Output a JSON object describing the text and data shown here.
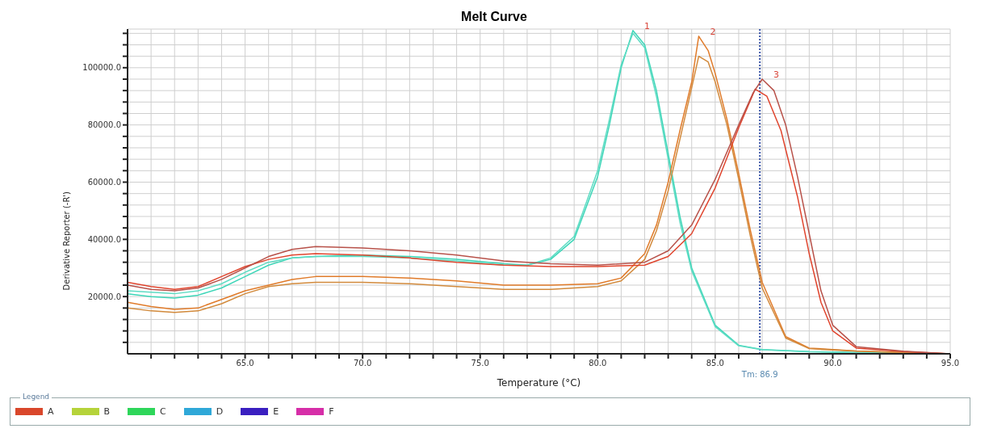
{
  "chart_data": {
    "type": "line",
    "title": "Melt Curve",
    "xlabel": "Temperature (°C)",
    "ylabel": "Derivative Reporter (-R')",
    "legend_title": "Legend",
    "legend": "bottom left",
    "grid": true,
    "xlim": [
      60,
      95
    ],
    "ylim": [
      0,
      113500
    ],
    "xticks": [
      {
        "value": 61,
        "label": null
      },
      {
        "value": 62,
        "label": null
      },
      {
        "value": 63,
        "label": null
      },
      {
        "value": 64,
        "label": null
      },
      {
        "value": 65,
        "label": "65.0"
      },
      {
        "value": 66,
        "label": null
      },
      {
        "value": 67,
        "label": null
      },
      {
        "value": 68,
        "label": null
      },
      {
        "value": 69,
        "label": null
      },
      {
        "value": 70,
        "label": "70.0"
      },
      {
        "value": 71,
        "label": null
      },
      {
        "value": 72,
        "label": null
      },
      {
        "value": 73,
        "label": null
      },
      {
        "value": 74,
        "label": null
      },
      {
        "value": 75,
        "label": "75.0"
      },
      {
        "value": 76,
        "label": null
      },
      {
        "value": 77,
        "label": null
      },
      {
        "value": 78,
        "label": null
      },
      {
        "value": 79,
        "label": null
      },
      {
        "value": 80,
        "label": "80.0"
      },
      {
        "value": 81,
        "label": null
      },
      {
        "value": 82,
        "label": null
      },
      {
        "value": 83,
        "label": null
      },
      {
        "value": 84,
        "label": null
      },
      {
        "value": 85,
        "label": "85.0"
      },
      {
        "value": 86,
        "label": null
      },
      {
        "value": 87,
        "label": null
      },
      {
        "value": 88,
        "label": null
      },
      {
        "value": 89,
        "label": null
      },
      {
        "value": 90,
        "label": "90.0"
      },
      {
        "value": 91,
        "label": null
      },
      {
        "value": 92,
        "label": null
      },
      {
        "value": 93,
        "label": null
      },
      {
        "value": 94,
        "label": null
      },
      {
        "value": 95,
        "label": "95.0"
      }
    ],
    "yticks": [
      {
        "value": 4000,
        "label": null
      },
      {
        "value": 8000,
        "label": null
      },
      {
        "value": 12000,
        "label": null
      },
      {
        "value": 16000,
        "label": null
      },
      {
        "value": 20000,
        "label": "20000.0"
      },
      {
        "value": 24000,
        "label": null
      },
      {
        "value": 28000,
        "label": null
      },
      {
        "value": 32000,
        "label": null
      },
      {
        "value": 36000,
        "label": null
      },
      {
        "value": 40000,
        "label": "40000.0"
      },
      {
        "value": 44000,
        "label": null
      },
      {
        "value": 48000,
        "label": null
      },
      {
        "value": 52000,
        "label": null
      },
      {
        "value": 56000,
        "label": null
      },
      {
        "value": 60000,
        "label": "60000.0"
      },
      {
        "value": 64000,
        "label": null
      },
      {
        "value": 68000,
        "label": null
      },
      {
        "value": 72000,
        "label": null
      },
      {
        "value": 76000,
        "label": null
      },
      {
        "value": 80000,
        "label": "80000.0"
      },
      {
        "value": 84000,
        "label": null
      },
      {
        "value": 88000,
        "label": null
      },
      {
        "value": 92000,
        "label": null
      },
      {
        "value": 96000,
        "label": null
      },
      {
        "value": 100000,
        "label": "100000.0"
      },
      {
        "value": 104000,
        "label": null
      },
      {
        "value": 108000,
        "label": null
      },
      {
        "value": 112000,
        "label": null
      }
    ],
    "ref_lines": [
      {
        "axis": "x",
        "value": 86.9,
        "label": "Tm: 86.9",
        "color": "#3a55a8",
        "line_style": "dotted"
      }
    ],
    "annotations": [
      {
        "text": "1",
        "x": 81.5,
        "y": 113000
      },
      {
        "text": "2",
        "x": 84.3,
        "y": 111000
      },
      {
        "text": "3",
        "x": 87,
        "y": 96000
      }
    ],
    "series": [
      {
        "color": "#3dd6b8",
        "x": [
          60,
          61,
          62,
          63,
          64,
          65,
          66,
          67,
          68,
          70,
          72,
          74,
          76,
          77,
          78,
          79,
          80,
          80.5,
          81,
          81.5,
          82,
          82.5,
          83,
          83.5,
          84,
          85,
          86,
          87,
          89,
          92,
          95
        ],
        "values": [
          21000,
          20000,
          19500,
          20500,
          23000,
          27000,
          31000,
          33500,
          34000,
          34500,
          34000,
          33000,
          31500,
          31000,
          33000,
          40000,
          62000,
          80000,
          100000,
          113000,
          108000,
          92000,
          70000,
          48000,
          30000,
          10000,
          3000,
          1500,
          800,
          300,
          0
        ]
      },
      {
        "color": "#5fdcc4",
        "x": [
          60,
          61,
          62,
          63,
          64,
          65,
          66,
          67,
          68,
          70,
          72,
          74,
          76,
          77,
          78,
          79,
          80,
          80.5,
          81,
          81.5,
          82,
          82.5,
          83,
          83.5,
          84,
          85,
          86,
          87,
          89,
          92,
          95
        ],
        "values": [
          22000,
          21500,
          21000,
          22000,
          24500,
          28500,
          32000,
          33500,
          34000,
          34000,
          33500,
          32500,
          31000,
          31000,
          33500,
          41000,
          64000,
          82000,
          101000,
          112000,
          107000,
          90000,
          68000,
          46000,
          29000,
          9500,
          2800,
          1400,
          700,
          300,
          0
        ]
      },
      {
        "color": "#e07b2a",
        "x": [
          60,
          61,
          62,
          63,
          64,
          65,
          66,
          67,
          68,
          70,
          72,
          74,
          76,
          78,
          80,
          81,
          82,
          82.5,
          83,
          83.5,
          84,
          84.3,
          84.7,
          85,
          85.5,
          86,
          86.5,
          87,
          88,
          89,
          91,
          95
        ],
        "values": [
          18000,
          16500,
          15500,
          16000,
          19000,
          22000,
          24000,
          26000,
          27000,
          27000,
          26500,
          25500,
          24000,
          24000,
          24500,
          26500,
          35000,
          45000,
          60000,
          78000,
          95000,
          111000,
          106000,
          98000,
          82000,
          63000,
          43000,
          25000,
          6000,
          2000,
          1000,
          0
        ]
      },
      {
        "color": "#d28a3c",
        "x": [
          60,
          61,
          62,
          63,
          64,
          65,
          66,
          67,
          68,
          70,
          72,
          74,
          76,
          78,
          80,
          81,
          82,
          82.5,
          83,
          83.5,
          84,
          84.3,
          84.7,
          85,
          85.5,
          86,
          86.5,
          87,
          88,
          89,
          91,
          95
        ],
        "values": [
          16000,
          15000,
          14500,
          15000,
          17500,
          21000,
          23500,
          24500,
          25000,
          25000,
          24500,
          23500,
          22500,
          22500,
          23500,
          25500,
          33000,
          43000,
          57000,
          75000,
          93000,
          104000,
          102000,
          95000,
          80000,
          61000,
          41000,
          23000,
          5500,
          1800,
          900,
          0
        ]
      },
      {
        "color": "#e0452e",
        "x": [
          60,
          61,
          62,
          63,
          64,
          65,
          66,
          67,
          68,
          70,
          72,
          74,
          76,
          78,
          80,
          82,
          83,
          84,
          85,
          86,
          86.7,
          87.2,
          87.8,
          88.5,
          89,
          89.5,
          90,
          91,
          93,
          95
        ],
        "values": [
          25000,
          23500,
          22500,
          23500,
          27000,
          30500,
          33000,
          34500,
          35000,
          34500,
          33500,
          32000,
          31000,
          30500,
          30500,
          31000,
          34000,
          42000,
          58000,
          79000,
          92500,
          90000,
          78000,
          55000,
          35000,
          18000,
          8000,
          2000,
          800,
          0
        ]
      },
      {
        "color": "#b8524a",
        "x": [
          60,
          61,
          62,
          63,
          64,
          65,
          66,
          67,
          68,
          70,
          72,
          74,
          76,
          78,
          80,
          82,
          83,
          84,
          85,
          86,
          86.6,
          87,
          87.5,
          88,
          88.5,
          89,
          89.5,
          90,
          91,
          93,
          95
        ],
        "values": [
          24000,
          22500,
          22000,
          23000,
          26000,
          30000,
          34000,
          36500,
          37500,
          37000,
          36000,
          34500,
          32500,
          31500,
          31000,
          32000,
          36000,
          45000,
          61000,
          80000,
          91000,
          96000,
          92000,
          80000,
          62000,
          42000,
          22000,
          10000,
          2500,
          900,
          0
        ]
      },
      {
        "name": "A",
        "color": "#d9472b"
      },
      {
        "name": "B",
        "color": "#b5d33a"
      },
      {
        "name": "C",
        "color": "#2ed65a"
      },
      {
        "name": "D",
        "color": "#2fa8d8"
      },
      {
        "name": "E",
        "color": "#3a1fc0"
      },
      {
        "name": "F",
        "color": "#d62ea8"
      }
    ]
  }
}
